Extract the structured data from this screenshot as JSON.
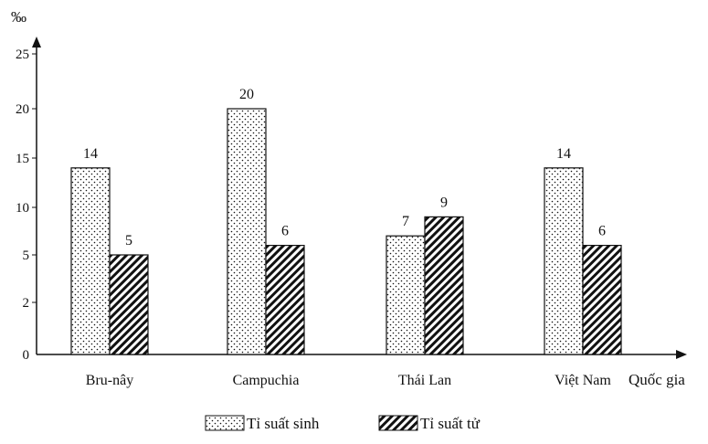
{
  "chart_data": {
    "type": "bar",
    "ylabel": "‰",
    "xlabel": "Quốc gia",
    "categories": [
      "Bru-nây",
      "Campuchia",
      "Thái Lan",
      "Việt Nam"
    ],
    "series": [
      {
        "name": "Tỉ suất sinh",
        "values": [
          14,
          20,
          7,
          14
        ],
        "pattern": "dots"
      },
      {
        "name": "Tỉ suất tử",
        "values": [
          5,
          6,
          9,
          6
        ],
        "pattern": "hatch"
      }
    ],
    "y_ticks": [
      0,
      2,
      5,
      10,
      15,
      20,
      25
    ],
    "value_labels": [
      [
        "14",
        "20",
        "7",
        "14"
      ],
      [
        "5",
        "6",
        "9",
        "6"
      ]
    ],
    "legend_position": "bottom-center",
    "grid": false,
    "colors": {
      "axis": "#111111",
      "bar_fill": "#ffffff",
      "pattern": "#111111"
    }
  }
}
